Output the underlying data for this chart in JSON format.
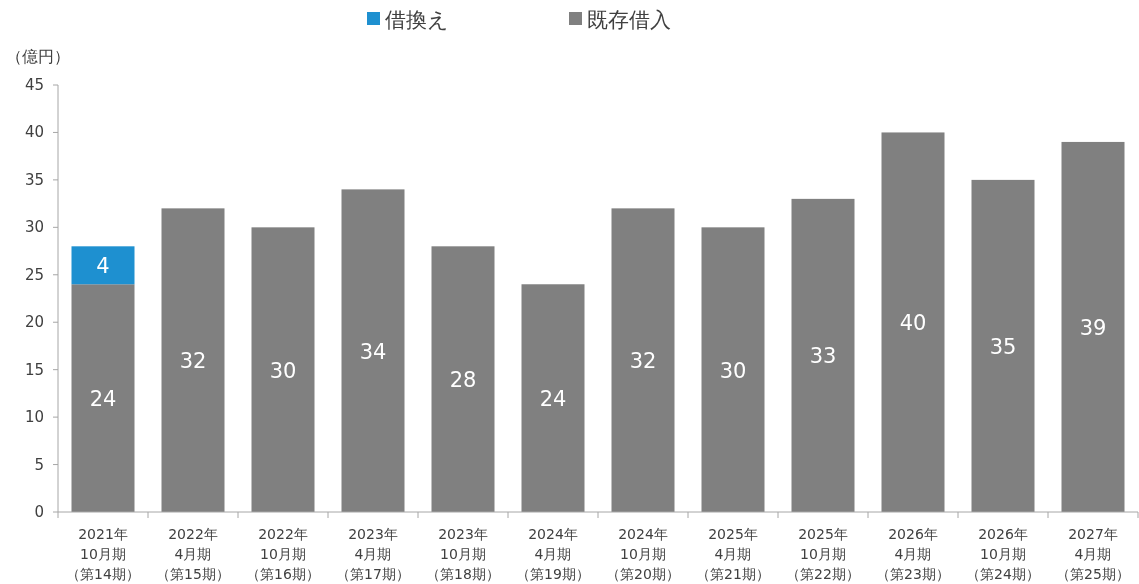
{
  "chart_data": {
    "type": "bar",
    "stacked": true,
    "ylabel": "（億円）",
    "categories": [
      "2021年10月期（第14期）",
      "2022年4月期（第15期）",
      "2022年10月期（第16期）",
      "2023年4月期（第17期）",
      "2023年10月期（第18期）",
      "2024年4月期（第19期）",
      "2024年10月期（第20期）",
      "2025年4月期（第21期）",
      "2025年10月期（第22期）",
      "2026年4月期（第23期）",
      "2026年10月期（第24期）",
      "2027年4月期（第25期）"
    ],
    "series": [
      {
        "name": "既存借入",
        "color": "#808080",
        "values": [
          24,
          32,
          30,
          34,
          28,
          24,
          32,
          30,
          33,
          40,
          35,
          39
        ]
      },
      {
        "name": "借換え",
        "color": "#1e90d0",
        "values": [
          4,
          null,
          null,
          null,
          null,
          null,
          null,
          null,
          null,
          null,
          null,
          null
        ]
      }
    ],
    "ylim": [
      0,
      45
    ],
    "yticks": [
      0,
      5,
      10,
      15,
      20,
      25,
      30,
      35,
      40,
      45
    ],
    "data_labels": true,
    "grid": false,
    "legend": "top"
  }
}
